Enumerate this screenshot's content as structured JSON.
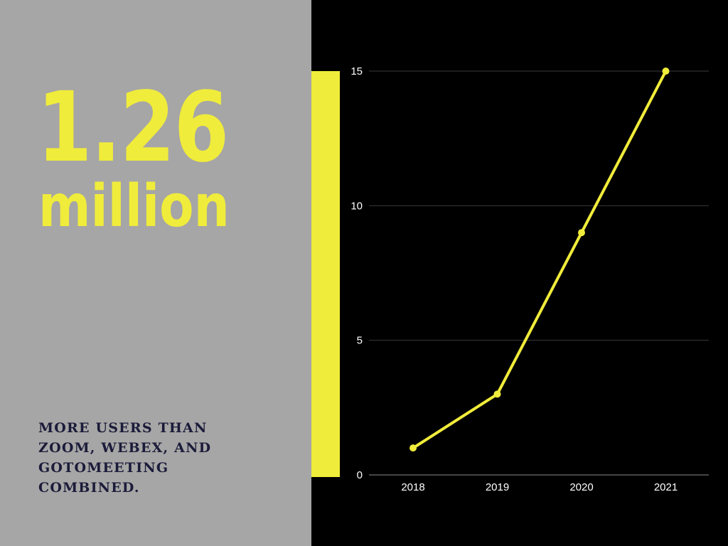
{
  "headline": {
    "number": "1.26",
    "unit": "million"
  },
  "caption": "MORE USERS THAN ZOOM, WEBEX, AND GOTOMEETING COMBINED.",
  "colors": {
    "accent": "#f0ec3b",
    "left_panel": "#a6a6a6",
    "background": "#000000",
    "caption_text": "#1b1b3a"
  },
  "chart_data": {
    "type": "line",
    "categories": [
      "2018",
      "2019",
      "2020",
      "2021"
    ],
    "series": [
      {
        "values": [
          1,
          3,
          9,
          15
        ]
      }
    ],
    "yticks": [
      0,
      5,
      10,
      15
    ],
    "ylim": [
      0,
      15
    ],
    "grid": true,
    "legend": "none",
    "title": "",
    "xlabel": "",
    "ylabel": ""
  }
}
